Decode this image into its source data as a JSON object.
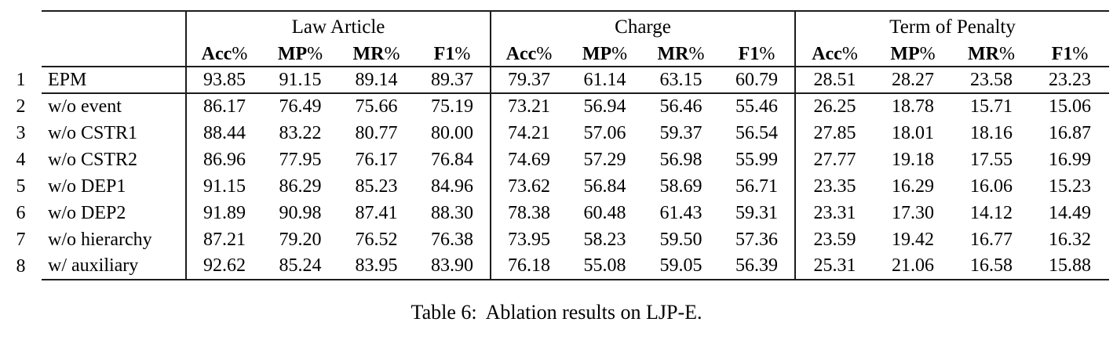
{
  "caption": {
    "label": "Table 6:",
    "text": "Ablation results on LJP-E."
  },
  "table": {
    "groups": [
      {
        "label": "Law Article"
      },
      {
        "label": "Charge"
      },
      {
        "label": "Term of Penalty"
      }
    ],
    "metric_headers": [
      {
        "name": "Acc",
        "suffix": "%"
      },
      {
        "name": "MP",
        "suffix": "%"
      },
      {
        "name": "MR",
        "suffix": "%"
      },
      {
        "name": "F1",
        "suffix": "%"
      }
    ],
    "rows": [
      {
        "index": "1",
        "label": "EPM",
        "law_article": [
          "93.85",
          "91.15",
          "89.14",
          "89.37"
        ],
        "charge": [
          "79.37",
          "61.14",
          "63.15",
          "60.79"
        ],
        "term_of_penalty": [
          "28.51",
          "28.27",
          "23.58",
          "23.23"
        ]
      },
      {
        "index": "2",
        "label": "w/o event",
        "law_article": [
          "86.17",
          "76.49",
          "75.66",
          "75.19"
        ],
        "charge": [
          "73.21",
          "56.94",
          "56.46",
          "55.46"
        ],
        "term_of_penalty": [
          "26.25",
          "18.78",
          "15.71",
          "15.06"
        ]
      },
      {
        "index": "3",
        "label": "w/o CSTR1",
        "law_article": [
          "88.44",
          "83.22",
          "80.77",
          "80.00"
        ],
        "charge": [
          "74.21",
          "57.06",
          "59.37",
          "56.54"
        ],
        "term_of_penalty": [
          "27.85",
          "18.01",
          "18.16",
          "16.87"
        ]
      },
      {
        "index": "4",
        "label": "w/o CSTR2",
        "law_article": [
          "86.96",
          "77.95",
          "76.17",
          "76.84"
        ],
        "charge": [
          "74.69",
          "57.29",
          "56.98",
          "55.99"
        ],
        "term_of_penalty": [
          "27.77",
          "19.18",
          "17.55",
          "16.99"
        ]
      },
      {
        "index": "5",
        "label": "w/o DEP1",
        "law_article": [
          "91.15",
          "86.29",
          "85.23",
          "84.96"
        ],
        "charge": [
          "73.62",
          "56.84",
          "58.69",
          "56.71"
        ],
        "term_of_penalty": [
          "23.35",
          "16.29",
          "16.06",
          "15.23"
        ]
      },
      {
        "index": "6",
        "label": "w/o DEP2",
        "law_article": [
          "91.89",
          "90.98",
          "87.41",
          "88.30"
        ],
        "charge": [
          "78.38",
          "60.48",
          "61.43",
          "59.31"
        ],
        "term_of_penalty": [
          "23.31",
          "17.30",
          "14.12",
          "14.49"
        ]
      },
      {
        "index": "7",
        "label": "w/o hierarchy",
        "law_article": [
          "87.21",
          "79.20",
          "76.52",
          "76.38"
        ],
        "charge": [
          "73.95",
          "58.23",
          "59.50",
          "57.36"
        ],
        "term_of_penalty": [
          "23.59",
          "19.42",
          "16.77",
          "16.32"
        ]
      },
      {
        "index": "8",
        "label": "w/ auxiliary",
        "law_article": [
          "92.62",
          "85.24",
          "83.95",
          "83.90"
        ],
        "charge": [
          "76.18",
          "55.08",
          "59.05",
          "56.39"
        ],
        "term_of_penalty": [
          "25.31",
          "21.06",
          "16.58",
          "15.88"
        ]
      }
    ]
  }
}
